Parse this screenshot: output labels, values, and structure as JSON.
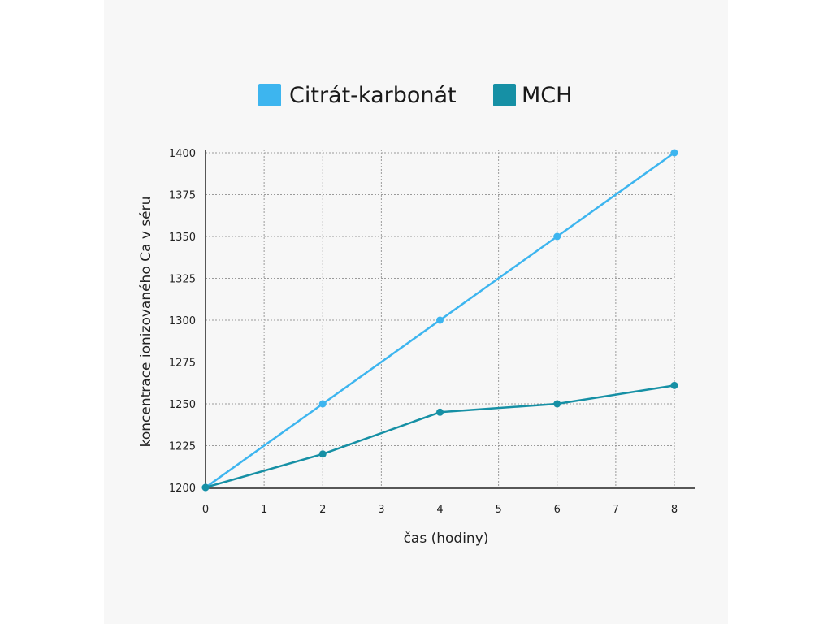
{
  "chart_data": {
    "type": "line",
    "title": "",
    "xlabel": "čas (hodiny)",
    "ylabel": "koncentrace ionizovaného Ca v séru",
    "x_ticks": [
      0,
      1,
      2,
      3,
      4,
      5,
      6,
      7,
      8
    ],
    "y_ticks": [
      1200,
      1225,
      1250,
      1275,
      1300,
      1325,
      1350,
      1375,
      1400
    ],
    "xlim": [
      0,
      8
    ],
    "ylim": [
      1200,
      1400
    ],
    "grid": true,
    "legend_position": "top-center",
    "series": [
      {
        "name": "Citrát-karbonát",
        "color": "#3db5ef",
        "points": [
          {
            "x": 0,
            "y": 1200
          },
          {
            "x": 2,
            "y": 1250
          },
          {
            "x": 4,
            "y": 1300
          },
          {
            "x": 6,
            "y": 1350
          },
          {
            "x": 8,
            "y": 1400
          }
        ]
      },
      {
        "name": "MCH",
        "color": "#1690a5",
        "points": [
          {
            "x": 0,
            "y": 1200
          },
          {
            "x": 2,
            "y": 1220
          },
          {
            "x": 4,
            "y": 1245
          },
          {
            "x": 6,
            "y": 1250
          },
          {
            "x": 8,
            "y": 1261
          }
        ]
      }
    ]
  }
}
